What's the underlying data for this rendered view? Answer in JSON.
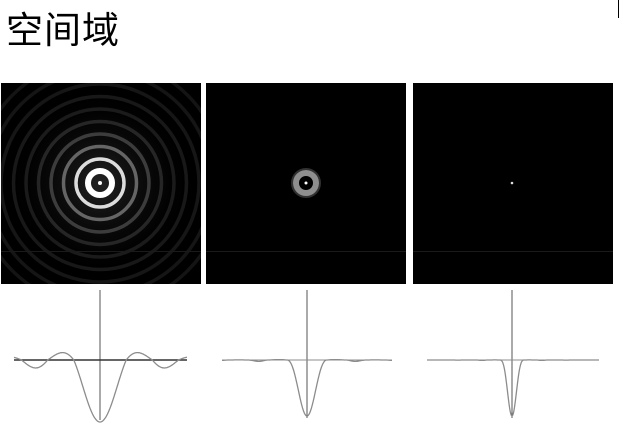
{
  "title": "空间域",
  "panels": [
    {
      "id": "wide-filter",
      "rings": [
        1.0,
        0.6,
        0.42,
        0.3,
        0.22,
        0.16,
        0.12,
        0.09,
        0.07
      ],
      "core": "bright-ring"
    },
    {
      "id": "medium-filter",
      "rings": [
        0.65,
        0.25
      ],
      "core": "small-ring"
    },
    {
      "id": "narrow-filter",
      "rings": [],
      "core": "point"
    }
  ],
  "profiles": [
    {
      "id": "wide-profile",
      "shape": "sinc-like with side lobes"
    },
    {
      "id": "medium-profile",
      "shape": "narrow dip with small side lobes"
    },
    {
      "id": "narrow-profile",
      "shape": "very narrow dip"
    }
  ],
  "colors": {
    "background": "#ffffff",
    "panel": "#000000",
    "curve": "#8c8c8c",
    "axis": "#555555",
    "text": "#000000"
  }
}
